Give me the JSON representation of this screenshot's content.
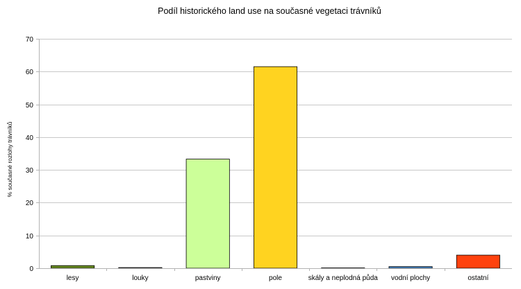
{
  "chart_data": {
    "type": "bar",
    "title": "Podíl historického land use na současné vegetaci trávníků",
    "xlabel": "",
    "ylabel": "% současné rozlohy trávníků",
    "categories": [
      "lesy",
      "louky",
      "pastviny",
      "pole",
      "skály a neplodná půda",
      "vodní plochy",
      "ostatní"
    ],
    "values": [
      0.8,
      0.2,
      33.3,
      61.5,
      0.1,
      0.5,
      4.0
    ],
    "colors": [
      "#6b8e23",
      "#ffffff",
      "#ccff99",
      "#ffd320",
      "#ffffff",
      "#4f90cf",
      "#ff420e"
    ],
    "ylim": [
      0,
      70
    ],
    "yticks": [
      0,
      10,
      20,
      30,
      40,
      50,
      60,
      70
    ],
    "grid": true,
    "legend": "none"
  }
}
